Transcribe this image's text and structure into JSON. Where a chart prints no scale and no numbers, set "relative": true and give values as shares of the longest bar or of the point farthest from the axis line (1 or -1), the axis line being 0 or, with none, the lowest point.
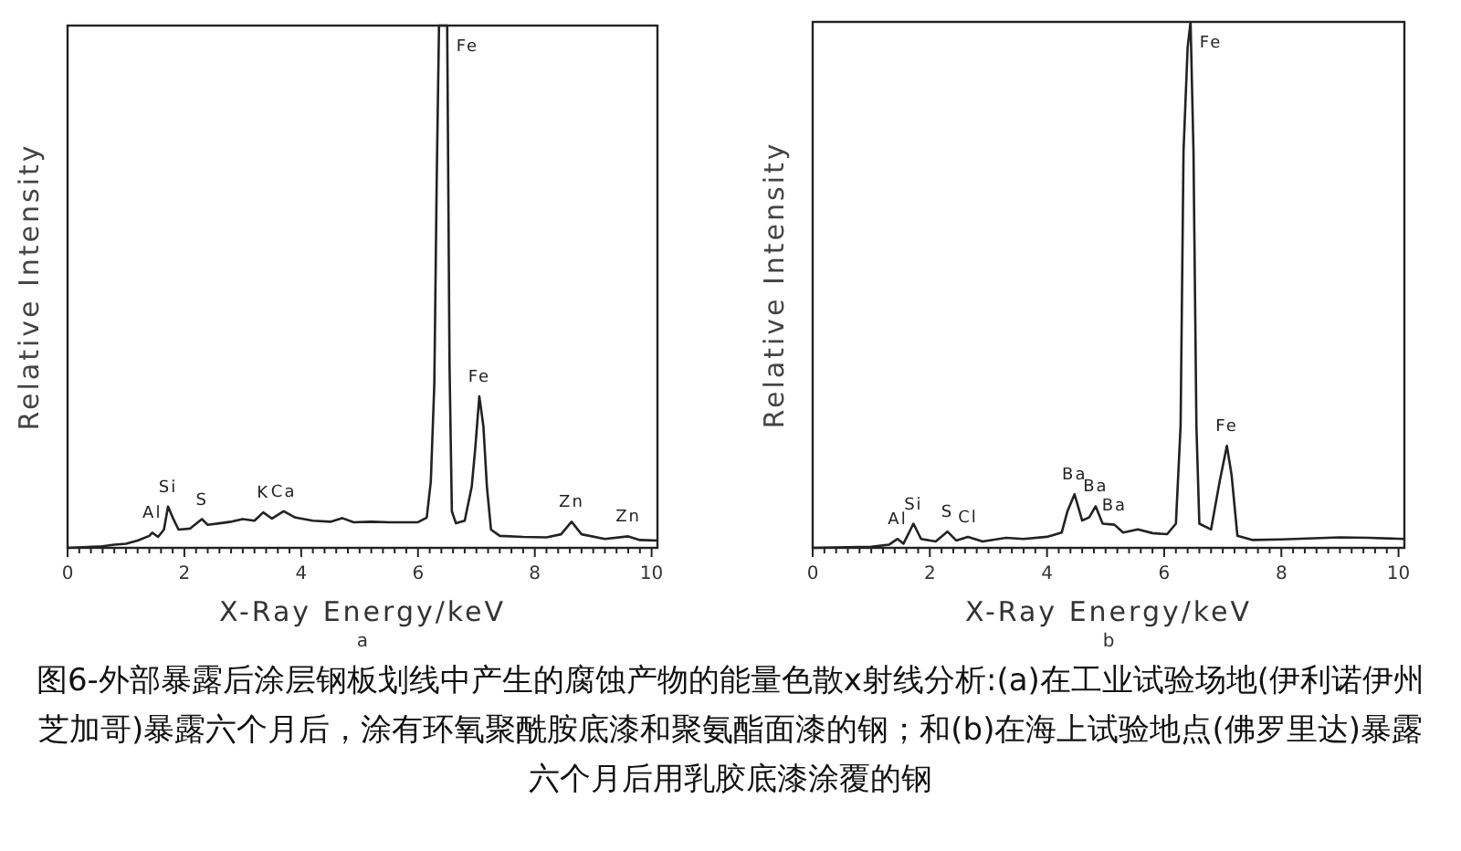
{
  "chart_data": [
    {
      "type": "line",
      "relative": true,
      "xlabel": "X-Ray Energy/keV",
      "ylabel": "Relative Intensity",
      "xlim": [
        0,
        10.1
      ],
      "xticks": [
        0,
        {
          "value": 0.2,
          "label": null
        },
        {
          "value": 0.4,
          "label": null
        },
        {
          "value": 0.6,
          "label": null
        },
        {
          "value": 0.8,
          "label": null
        },
        {
          "value": 1,
          "label": null
        },
        {
          "value": 1.2,
          "label": null
        },
        {
          "value": 1.4,
          "label": null
        },
        {
          "value": 1.6,
          "label": null
        },
        {
          "value": 1.8,
          "label": null
        },
        2,
        {
          "value": 2.2,
          "label": null
        },
        {
          "value": 2.4,
          "label": null
        },
        {
          "value": 2.6,
          "label": null
        },
        {
          "value": 2.8,
          "label": null
        },
        {
          "value": 3,
          "label": null
        },
        {
          "value": 3.2,
          "label": null
        },
        {
          "value": 3.4,
          "label": null
        },
        {
          "value": 3.6,
          "label": null
        },
        {
          "value": 3.8,
          "label": null
        },
        4,
        {
          "value": 4.2,
          "label": null
        },
        {
          "value": 4.4,
          "label": null
        },
        {
          "value": 4.6,
          "label": null
        },
        {
          "value": 4.8,
          "label": null
        },
        {
          "value": 5,
          "label": null
        },
        {
          "value": 5.2,
          "label": null
        },
        {
          "value": 5.4,
          "label": null
        },
        {
          "value": 5.6,
          "label": null
        },
        {
          "value": 5.8,
          "label": null
        },
        6,
        {
          "value": 6.2,
          "label": null
        },
        {
          "value": 6.4,
          "label": null
        },
        {
          "value": 6.6,
          "label": null
        },
        {
          "value": 6.8,
          "label": null
        },
        {
          "value": 7,
          "label": null
        },
        {
          "value": 7.2,
          "label": null
        },
        {
          "value": 7.4,
          "label": null
        },
        {
          "value": 7.6,
          "label": null
        },
        {
          "value": 7.8,
          "label": null
        },
        8,
        {
          "value": 8.2,
          "label": null
        },
        {
          "value": 8.4,
          "label": null
        },
        {
          "value": 8.6,
          "label": null
        },
        {
          "value": 8.8,
          "label": null
        },
        {
          "value": 9,
          "label": null
        },
        {
          "value": 9.2,
          "label": null
        },
        {
          "value": 9.4,
          "label": null
        },
        {
          "value": 9.6,
          "label": null
        },
        {
          "value": 9.8,
          "label": null
        },
        10
      ],
      "x": [
        0,
        0.6,
        0.8,
        1.0,
        1.2,
        1.4,
        1.45,
        1.55,
        1.65,
        1.72,
        1.8,
        1.9,
        2.1,
        2.3,
        2.4,
        2.6,
        2.8,
        3.0,
        3.2,
        3.35,
        3.5,
        3.7,
        3.9,
        4.2,
        4.5,
        4.7,
        4.9,
        5.2,
        5.5,
        5.8,
        6.0,
        6.15,
        6.22,
        6.28,
        6.32,
        6.36,
        6.5,
        6.54,
        6.58,
        6.65,
        6.8,
        6.92,
        6.98,
        7.05,
        7.12,
        7.18,
        7.25,
        7.4,
        7.8,
        8.2,
        8.45,
        8.63,
        8.8,
        9.2,
        9.6,
        9.8,
        10.1
      ],
      "series": [
        {
          "color": "#222222",
          "values": [
            0,
            0.003,
            0.006,
            0.008,
            0.014,
            0.023,
            0.029,
            0.021,
            0.035,
            0.079,
            0.058,
            0.035,
            0.037,
            0.055,
            0.044,
            0.047,
            0.05,
            0.055,
            0.052,
            0.068,
            0.056,
            0.07,
            0.058,
            0.052,
            0.05,
            0.057,
            0.049,
            0.05,
            0.049,
            0.049,
            0.049,
            0.058,
            0.128,
            0.315,
            0.7,
            1,
            1,
            0.35,
            0.07,
            0.047,
            0.052,
            0.117,
            0.19,
            0.29,
            0.233,
            0.117,
            0.035,
            0.023,
            0.021,
            0.02,
            0.026,
            0.05,
            0.026,
            0.017,
            0.022,
            0.015,
            0.014
          ]
        }
      ],
      "annotations": [
        "a",
        "图6-外部暴露后涂层钢板划线中产生的腐蚀产物的能量色散x射线分析:(a)在工业试验场地(伊利诺伊州芝加哥)暴露六个月后，涂有环氧聚酰胺底漆和聚氨酯面漆的钢；和(b)在海上试验地点(佛罗里达)暴露六个月后用乳胶底漆涂覆的钢",
        {
          "text": "Al",
          "x": 1.45,
          "y": 0.029
        },
        {
          "text": "Si",
          "x": 1.72,
          "y": 0.079
        },
        {
          "text": "S",
          "x": 2.3,
          "y": 0.055
        },
        {
          "text": "K",
          "x": 3.35,
          "y": 0.068
        },
        {
          "text": "Ca",
          "x": 3.7,
          "y": 0.07
        },
        {
          "text": "Fe",
          "x": 6.5,
          "y": 1
        },
        {
          "text": "Fe",
          "x": 7.05,
          "y": 0.29
        },
        {
          "text": "Zn",
          "x": 8.63,
          "y": 0.05
        },
        {
          "text": "Zn",
          "x": 9.6,
          "y": 0.022
        }
      ]
    },
    {
      "type": "line",
      "relative": true,
      "xlabel": "X-Ray Energy/keV",
      "ylabel": "Relative Intensity",
      "xlim": [
        0,
        10.1
      ],
      "xticks": [
        0,
        {
          "value": 0.2,
          "label": null
        },
        {
          "value": 0.4,
          "label": null
        },
        {
          "value": 0.6,
          "label": null
        },
        {
          "value": 0.8,
          "label": null
        },
        {
          "value": 1,
          "label": null
        },
        {
          "value": 1.2,
          "label": null
        },
        {
          "value": 1.4,
          "label": null
        },
        {
          "value": 1.6,
          "label": null
        },
        {
          "value": 1.8,
          "label": null
        },
        2,
        {
          "value": 2.2,
          "label": null
        },
        {
          "value": 2.4,
          "label": null
        },
        {
          "value": 2.6,
          "label": null
        },
        {
          "value": 2.8,
          "label": null
        },
        {
          "value": 3,
          "label": null
        },
        {
          "value": 3.2,
          "label": null
        },
        {
          "value": 3.4,
          "label": null
        },
        {
          "value": 3.6,
          "label": null
        },
        {
          "value": 3.8,
          "label": null
        },
        4,
        {
          "value": 4.2,
          "label": null
        },
        {
          "value": 4.4,
          "label": null
        },
        {
          "value": 4.6,
          "label": null
        },
        {
          "value": 4.8,
          "label": null
        },
        {
          "value": 5,
          "label": null
        },
        {
          "value": 5.2,
          "label": null
        },
        {
          "value": 5.4,
          "label": null
        },
        {
          "value": 5.6,
          "label": null
        },
        {
          "value": 5.8,
          "label": null
        },
        6,
        {
          "value": 6.2,
          "label": null
        },
        {
          "value": 6.4,
          "label": null
        },
        {
          "value": 6.6,
          "label": null
        },
        {
          "value": 6.8,
          "label": null
        },
        {
          "value": 7,
          "label": null
        },
        {
          "value": 7.2,
          "label": null
        },
        {
          "value": 7.4,
          "label": null
        },
        {
          "value": 7.6,
          "label": null
        },
        {
          "value": 7.8,
          "label": null
        },
        8,
        {
          "value": 8.2,
          "label": null
        },
        {
          "value": 8.4,
          "label": null
        },
        {
          "value": 8.6,
          "label": null
        },
        {
          "value": 8.8,
          "label": null
        },
        {
          "value": 9,
          "label": null
        },
        {
          "value": 9.2,
          "label": null
        },
        {
          "value": 9.4,
          "label": null
        },
        {
          "value": 9.6,
          "label": null
        },
        {
          "value": 9.8,
          "label": null
        },
        10
      ],
      "x": [
        0,
        1.0,
        1.3,
        1.45,
        1.55,
        1.72,
        1.85,
        2.1,
        2.3,
        2.45,
        2.65,
        2.9,
        3.3,
        3.6,
        4.0,
        4.25,
        4.35,
        4.47,
        4.6,
        4.72,
        4.83,
        4.95,
        5.15,
        5.3,
        5.55,
        5.8,
        6.05,
        6.2,
        6.28,
        6.33,
        6.4,
        6.45,
        6.5,
        6.55,
        6.6,
        6.8,
        6.95,
        7.07,
        7.15,
        7.25,
        7.5,
        8.0,
        9.0,
        9.5,
        10.1
      ],
      "series": [
        {
          "color": "#222222",
          "values": [
            0,
            0.002,
            0.006,
            0.017,
            0.008,
            0.046,
            0.017,
            0.012,
            0.031,
            0.014,
            0.021,
            0.012,
            0.019,
            0.017,
            0.021,
            0.029,
            0.07,
            0.102,
            0.052,
            0.058,
            0.079,
            0.046,
            0.044,
            0.029,
            0.035,
            0.028,
            0.026,
            0.046,
            0.232,
            0.754,
            0.951,
            1,
            0.754,
            0.232,
            0.046,
            0.035,
            0.128,
            0.194,
            0.139,
            0.023,
            0.015,
            0.016,
            0.02,
            0.019,
            0.017
          ]
        }
      ],
      "annotations": [
        "b",
        {
          "text": "Al",
          "x": 1.45,
          "y": 0.017
        },
        {
          "text": "Si",
          "x": 1.72,
          "y": 0.046
        },
        {
          "text": "S",
          "x": 2.3,
          "y": 0.031
        },
        {
          "text": "Cl",
          "x": 2.65,
          "y": 0.021
        },
        {
          "text": "Ba",
          "x": 4.47,
          "y": 0.102
        },
        {
          "text": "Ba",
          "x": 4.83,
          "y": 0.079
        },
        {
          "text": "Ba",
          "x": 5.15,
          "y": 0.044
        },
        {
          "text": "Fe",
          "x": 6.45,
          "y": 1
        },
        {
          "text": "Fe",
          "x": 7.07,
          "y": 0.194
        }
      ]
    }
  ]
}
